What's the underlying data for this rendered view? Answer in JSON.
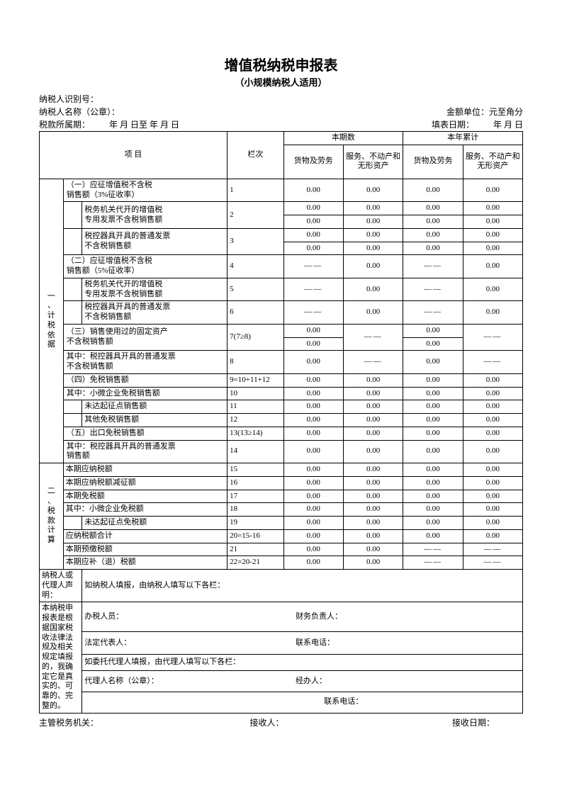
{
  "title": "增值税纳税申报表",
  "subtitle": "（小规模纳税人适用）",
  "meta": {
    "id_label": "纳税人识别号：",
    "name_label": "纳税人名称（公章）：",
    "unit_label": "金额单位：元至角分",
    "period_label": "税款所属期：",
    "period_text": "年  月  日至      年  月  日",
    "fill_date_label": "填表日期：",
    "fill_date_text": "年  月  日"
  },
  "headers": {
    "item": "项  目",
    "col": "栏次",
    "period_group": "本期数",
    "year_group": "本年累计",
    "goods": "货物及劳务",
    "services": "服务、不动产和无形资产"
  },
  "section1_label": "一、计税依据",
  "section2_label": "二、税款计算",
  "rows": [
    {
      "label": "（一）应征增值税不含税\n销售额（3%征收率）",
      "col": "1",
      "sub": false,
      "v": [
        "0.00",
        "0.00",
        "0.00",
        "0.00"
      ]
    },
    {
      "label": "税务机关代开的增值税\n专用发票不含税销售额",
      "col": "2",
      "sub": true,
      "split": true,
      "v1": [
        "0.00",
        "0.00",
        "0.00",
        "0.00"
      ],
      "v2": [
        "0.00",
        "0.00",
        "0.00",
        "0.00"
      ]
    },
    {
      "label": "税控器具开具的普通发票\n不含税销售额",
      "col": "3",
      "sub": true,
      "split": true,
      "v1": [
        "0.00",
        "0.00",
        "0.00",
        "0.00"
      ],
      "v2": [
        "0.00",
        "0.00",
        "0.00",
        "0.00"
      ]
    },
    {
      "label": "（二）应征增值税不含税\n销售额（5%征收率）",
      "col": "4",
      "sub": false,
      "v": [
        "——",
        "0.00",
        "——",
        "0.00"
      ]
    },
    {
      "label": "税务机关代开的增值税\n专用发票不含税销售额",
      "col": "5",
      "sub": true,
      "v": [
        "——",
        "0.00",
        "——",
        "0.00"
      ]
    },
    {
      "label": "税控器具开具的普通发票\n不含税销售额",
      "col": "6",
      "sub": true,
      "v": [
        "——",
        "0.00",
        "——",
        "0.00"
      ]
    },
    {
      "label": "（三）销售使用过的固定资产\n不含税销售额",
      "col": "7(7≥8)",
      "sub": false,
      "split": true,
      "v1": [
        "0.00",
        "",
        "0.00",
        ""
      ],
      "v2": [
        "0.00",
        "",
        "0.00",
        ""
      ],
      "dash_cols": [
        1,
        3
      ]
    },
    {
      "label": "其中：税控器具开具的普通发票\n不含税销售额",
      "col": "8",
      "sub": false,
      "v": [
        "0.00",
        "——",
        "0.00",
        "——"
      ]
    },
    {
      "label": "（四）免税销售额",
      "col": "9=10+11+12",
      "sub": false,
      "v": [
        "0.00",
        "0.00",
        "0.00",
        "0.00"
      ]
    },
    {
      "label": "其中：小微企业免税销售额",
      "col": "10",
      "sub": false,
      "v": [
        "0.00",
        "0.00",
        "0.00",
        "0.00"
      ]
    },
    {
      "label": "未达起征点销售额",
      "col": "11",
      "sub": true,
      "v": [
        "0.00",
        "0.00",
        "0.00",
        "0.00"
      ]
    },
    {
      "label": "其他免税销售额",
      "col": "12",
      "sub": true,
      "v": [
        "0.00",
        "0.00",
        "0.00",
        "0.00"
      ]
    },
    {
      "label": "（五）出口免税销售额",
      "col": "13(13≥14)",
      "sub": false,
      "v": [
        "0.00",
        "0.00",
        "0.00",
        "0.00"
      ]
    },
    {
      "label": "其中：税控器具开具的普通发票\n销售额",
      "col": "14",
      "sub": false,
      "v": [
        "0.00",
        "0.00",
        "0.00",
        "0.00"
      ]
    }
  ],
  "rows2": [
    {
      "label": "本期应纳税额",
      "col": "15",
      "v": [
        "0.00",
        "0.00",
        "0.00",
        "0.00"
      ]
    },
    {
      "label": "本期应纳税额减征额",
      "col": "16",
      "v": [
        "0.00",
        "0.00",
        "0.00",
        "0.00"
      ]
    },
    {
      "label": "本期免税额",
      "col": "17",
      "v": [
        "0.00",
        "0.00",
        "0.00",
        "0.00"
      ]
    },
    {
      "label": "其中：小微企业免税额",
      "col": "18",
      "v": [
        "0.00",
        "0.00",
        "0.00",
        "0.00"
      ]
    },
    {
      "label": "未达起征点免税额",
      "col": "19",
      "sub": true,
      "v": [
        "0.00",
        "0.00",
        "0.00",
        "0.00"
      ]
    },
    {
      "label": "应纳税额合计",
      "col": "20=15-16",
      "v": [
        "0.00",
        "0.00",
        "0.00",
        "0.00"
      ]
    },
    {
      "label": "本期预缴税额",
      "col": "21",
      "v": [
        "0.00",
        "0.00",
        "——",
        "——"
      ]
    },
    {
      "label": "本期应补（退）税额",
      "col": "22=20-21",
      "v": [
        "0.00",
        "0.00",
        "——",
        "——"
      ]
    }
  ],
  "decl": {
    "left_label": "纳税人或代理人声明：",
    "fill_by_taxpayer": "如纳税人填报，由纳税人填写以下各栏：",
    "handler": "办税人员：",
    "finance": "财务负责人：",
    "legal": "法定代表人：",
    "phone": "联系电话：",
    "left_text": "本纳税申报表是根据国家税收法律法规及相关规定填报的，我确定它是真实的、可靠的、完整的。",
    "fill_by_agent": "如委托代理人填报，由代理人填写以下各栏：",
    "agent_name": "代理人名称（公章）：",
    "agent_handler": "经办人：",
    "agent_phone": "联系电话："
  },
  "footer": {
    "authority": "主管税务机关：",
    "receiver": "接收人：",
    "receive_date": "接收日期："
  }
}
